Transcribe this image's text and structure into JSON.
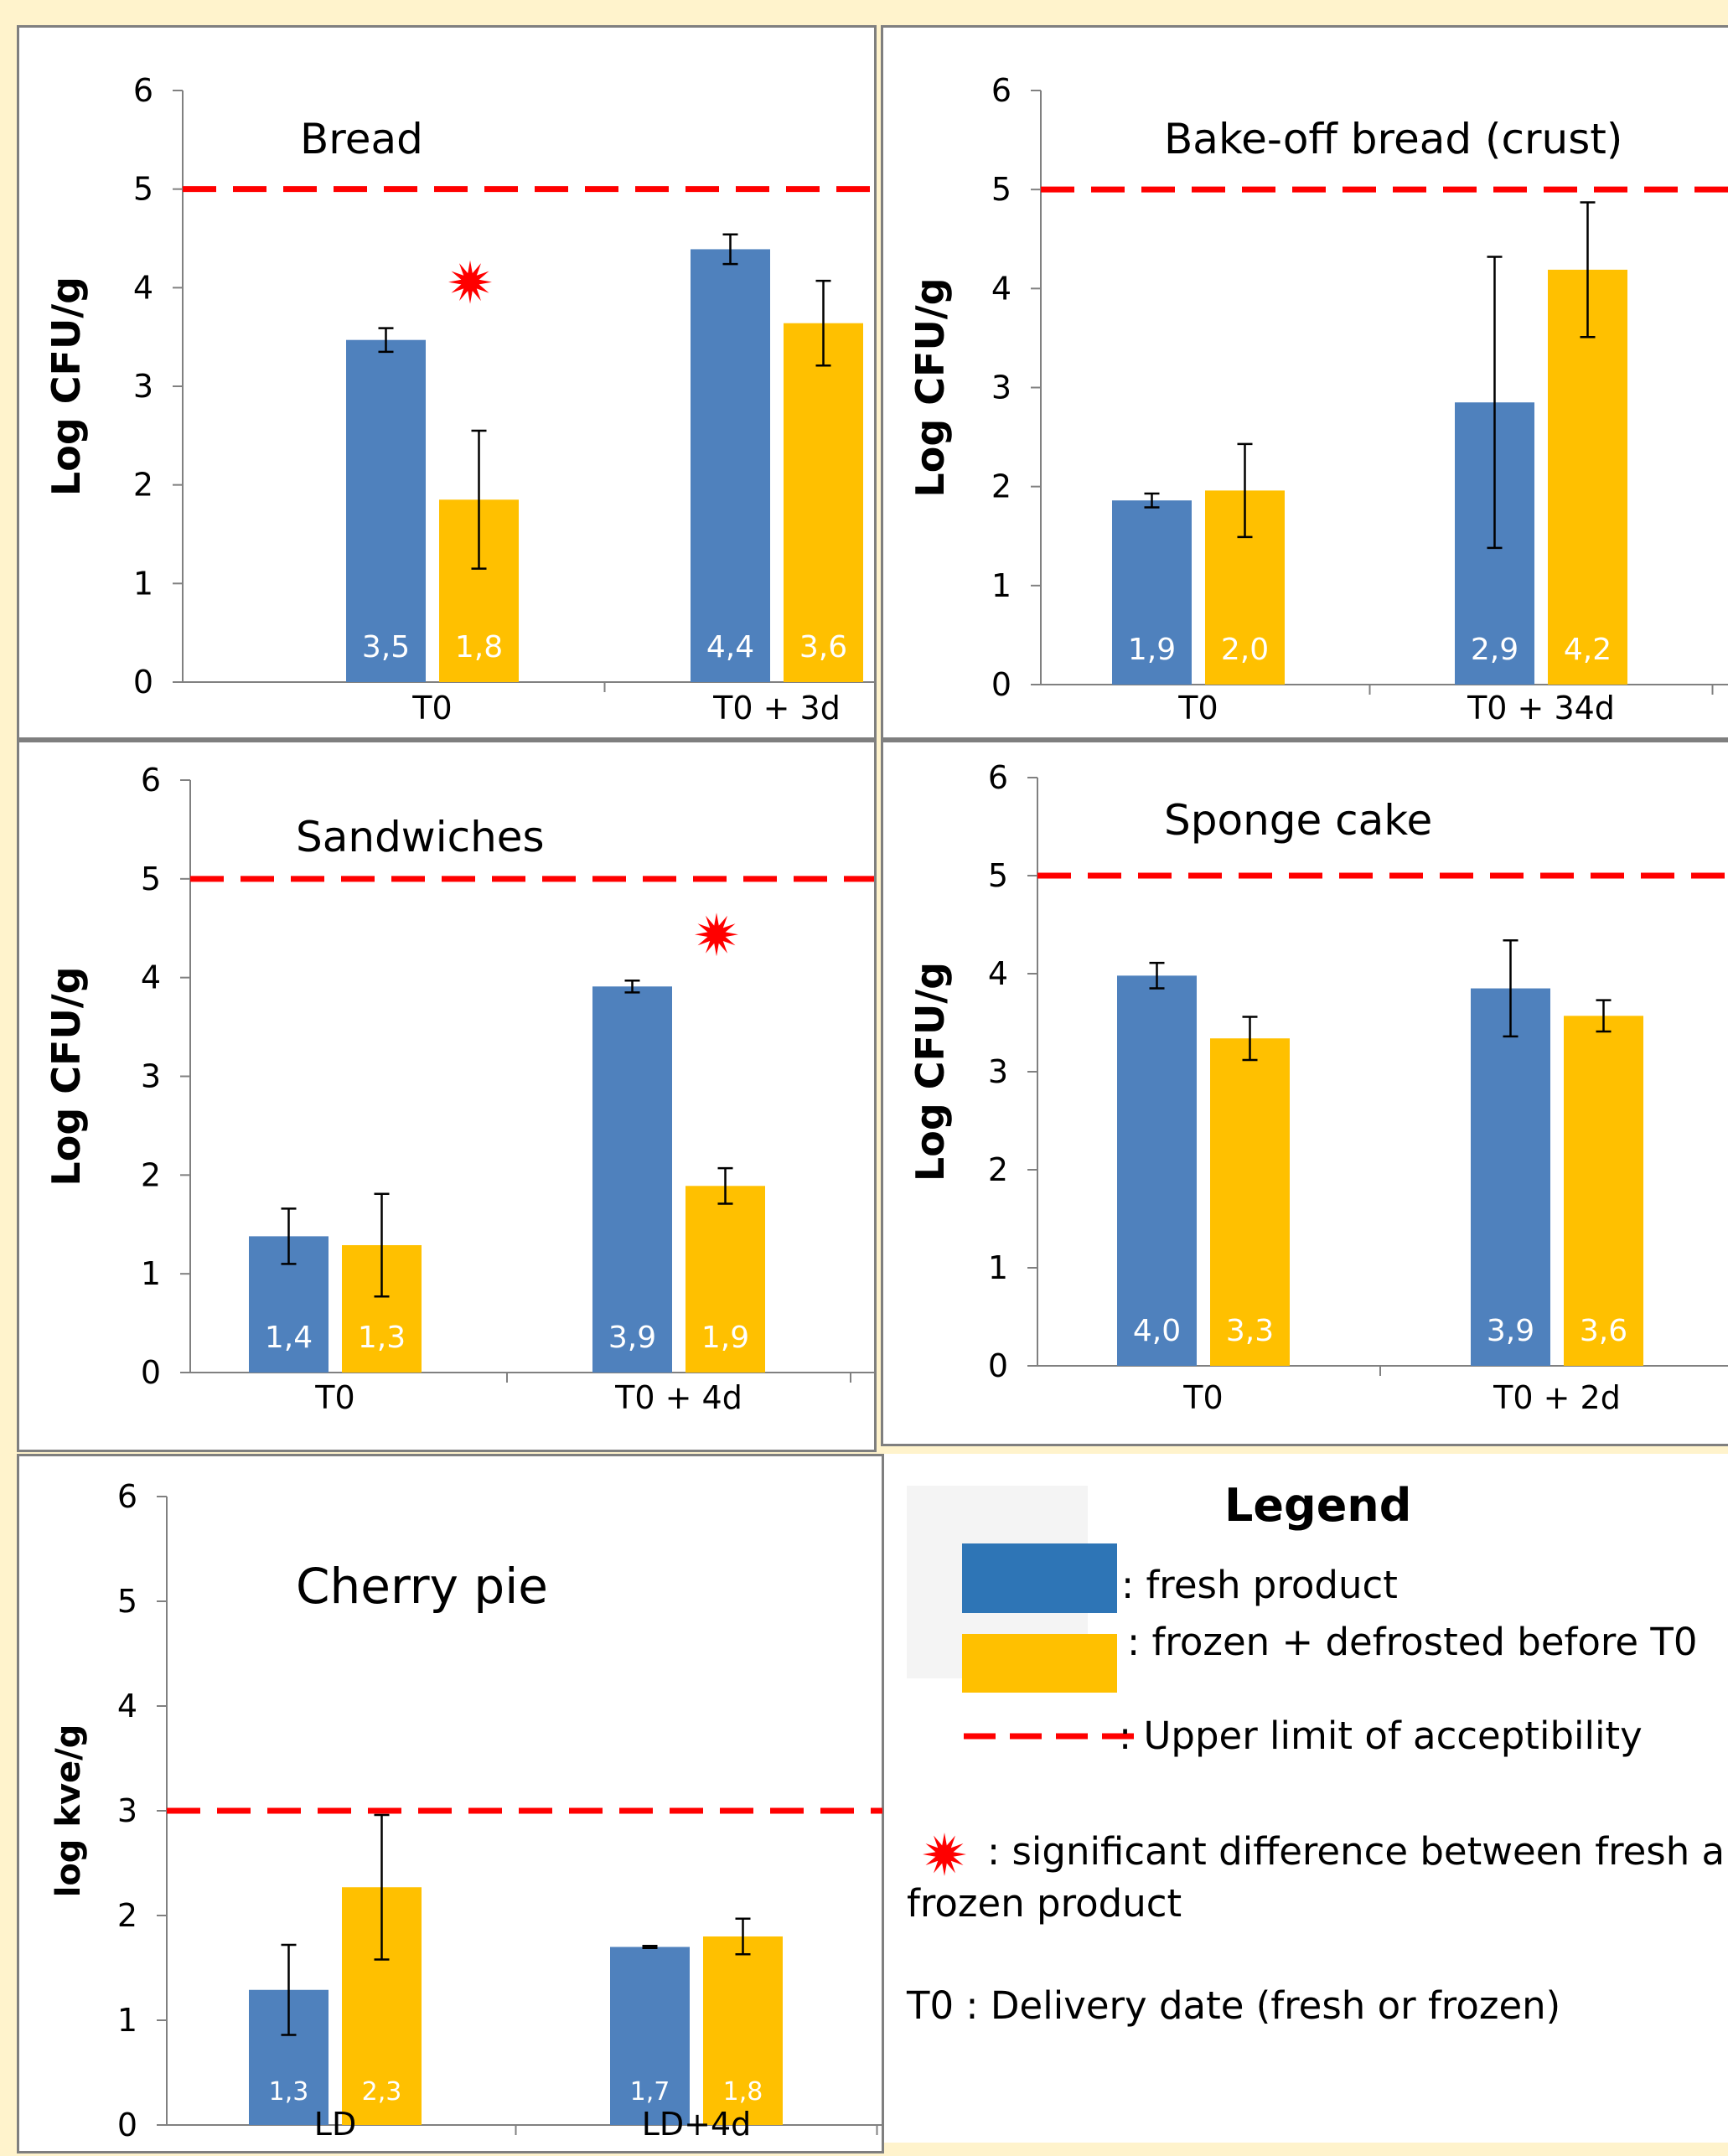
{
  "colors": {
    "fresh": "#4f81bd",
    "frozen": "#ffc000",
    "limit": "#ff0000",
    "fresh_swatch": "#2e75b6"
  },
  "chart_data": [
    {
      "type": "bar",
      "title": "Bread",
      "ylabel": "Log CFU/g",
      "ylim": [
        0,
        6
      ],
      "yticks": [
        "0",
        "1",
        "2",
        "3",
        "4",
        "5",
        "6"
      ],
      "categories": [
        "T0",
        "T0 + 3d"
      ],
      "series": [
        {
          "color": "fresh",
          "values": [
            3.47,
            4.39
          ],
          "errors": [
            0.12,
            0.15
          ],
          "labels": [
            "3,5",
            "4,4"
          ]
        },
        {
          "color": "frozen",
          "values": [
            1.85,
            3.64
          ],
          "errors": [
            0.7,
            0.43
          ],
          "labels": [
            "1,8",
            "3,6"
          ]
        }
      ],
      "limit_line": 5,
      "significance_markers": [
        {
          "category": 0
        }
      ]
    },
    {
      "type": "bar",
      "title": "Bake-off bread (crust)",
      "ylabel": "Log CFU/g",
      "ylim": [
        0,
        6
      ],
      "yticks": [
        "0",
        "1",
        "2",
        "3",
        "4",
        "5",
        "6"
      ],
      "categories": [
        "T0",
        "T0 + 34d"
      ],
      "series": [
        {
          "color": "fresh",
          "values": [
            1.86,
            2.85
          ],
          "errors": [
            0.07,
            1.47
          ],
          "labels": [
            "1,9",
            "2,9"
          ]
        },
        {
          "color": "frozen",
          "values": [
            1.96,
            4.19
          ],
          "errors": [
            0.47,
            0.68
          ],
          "labels": [
            "2,0",
            "4,2"
          ]
        }
      ],
      "limit_line": 5,
      "significance_markers": []
    },
    {
      "type": "bar",
      "title": "Sandwiches",
      "ylabel": "Log CFU/g",
      "ylim": [
        0,
        6
      ],
      "yticks": [
        "0",
        "1",
        "2",
        "3",
        "4",
        "5",
        "6"
      ],
      "categories": [
        "T0",
        "T0 + 4d"
      ],
      "series": [
        {
          "color": "fresh",
          "values": [
            1.38,
            3.91
          ],
          "errors": [
            0.28,
            0.06
          ],
          "labels": [
            "1,4",
            "3,9"
          ]
        },
        {
          "color": "frozen",
          "values": [
            1.29,
            1.89
          ],
          "errors": [
            0.52,
            0.18
          ],
          "labels": [
            "1,3",
            "1,9"
          ]
        }
      ],
      "limit_line": 5,
      "significance_markers": [
        {
          "category": 1
        }
      ]
    },
    {
      "type": "bar",
      "title": "Sponge cake",
      "ylabel": "Log CFU/g",
      "ylim": [
        0,
        6
      ],
      "yticks": [
        "0",
        "1",
        "2",
        "3",
        "4",
        "5",
        "6"
      ],
      "categories": [
        "T0",
        "T0 + 2d"
      ],
      "series": [
        {
          "color": "fresh",
          "values": [
            3.98,
            3.85
          ],
          "errors": [
            0.13,
            0.49
          ],
          "labels": [
            "4,0",
            "3,9"
          ]
        },
        {
          "color": "frozen",
          "values": [
            3.34,
            3.57
          ],
          "errors": [
            0.22,
            0.16
          ],
          "labels": [
            "3,3",
            "3,6"
          ]
        }
      ],
      "limit_line": 5,
      "significance_markers": []
    },
    {
      "type": "bar",
      "title": "Cherry pie",
      "ylabel": "log kve/g",
      "ylim": [
        0,
        6
      ],
      "yticks": [
        "0",
        "1",
        "2",
        "3",
        "4",
        "5",
        "6"
      ],
      "categories": [
        "LD",
        "LD+4d"
      ],
      "series": [
        {
          "color": "fresh",
          "values": [
            1.29,
            1.7
          ],
          "errors": [
            0.43,
            0.01
          ],
          "labels": [
            "1,3",
            "1,7"
          ]
        },
        {
          "color": "frozen",
          "values": [
            2.27,
            1.8
          ],
          "errors": [
            0.69,
            0.17
          ],
          "labels": [
            "2,3",
            "1,8"
          ]
        }
      ],
      "limit_line": 3,
      "significance_markers": []
    }
  ],
  "legend": {
    "title": "Legend",
    "fresh": ": fresh product",
    "frozen": ": frozen + defrosted before T0",
    "limit": ": Upper limit of acceptibility",
    "significance_line1": ": significant difference between fresh and",
    "significance_line2": "frozen product",
    "t0": "T0 : Delivery date (fresh or frozen)"
  }
}
